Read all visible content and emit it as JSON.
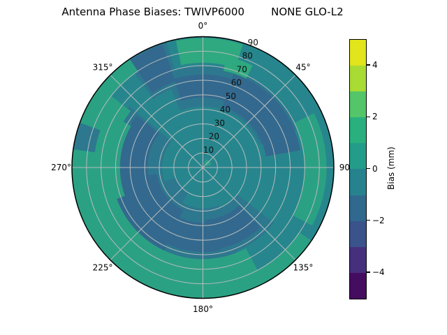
{
  "title": "Antenna Phase Biases: TWIVP6000        NONE GLO-L2",
  "chart_data": {
    "type": "polar_contour",
    "title": "Antenna Phase Biases: TWIVP6000        NONE GLO-L2",
    "antenna": "TWIVP6000",
    "radome": "NONE",
    "signal": "GLO-L2",
    "theta_ticks": [
      {
        "angle": 0,
        "label": "0°"
      },
      {
        "angle": 45,
        "label": "45°"
      },
      {
        "angle": 90,
        "label": "90"
      },
      {
        "angle": 135,
        "label": "135°"
      },
      {
        "angle": 180,
        "label": "180°"
      },
      {
        "angle": 225,
        "label": "225°"
      },
      {
        "angle": 270,
        "label": "270°"
      },
      {
        "angle": 315,
        "label": "315°"
      }
    ],
    "r_ticks": [
      10,
      20,
      30,
      40,
      50,
      60,
      70,
      80,
      90
    ],
    "r_max": 90,
    "r_label_angle": 22.5,
    "grid_color": "#b6bcbe",
    "rim_color": "#000000",
    "base_color": "#27868d",
    "base_bias_bin": "-1..0 mm",
    "regions": [
      {
        "name": "steel-band-top",
        "bias_bin": "-1..0",
        "color": "#2d788e",
        "a0": 338,
        "a1": 428,
        "r0": 42,
        "r1": 70
      },
      {
        "name": "steel-band-lower-left",
        "bias_bin": "-1..0",
        "color": "#2d788e",
        "a0": 158,
        "a1": 310,
        "r0": 28,
        "r1": 66
      },
      {
        "name": "steel-band-lower-right",
        "bias_bin": "-1..0",
        "color": "#2d788e",
        "a0": 128,
        "a1": 186,
        "r0": 30,
        "r1": 62
      },
      {
        "name": "steel-rim-upper-left",
        "bias_bin": "-1..0",
        "color": "#2d788e",
        "a0": 324,
        "a1": 344,
        "r0": 58,
        "r1": 90
      },
      {
        "name": "steel-patch-center-left",
        "bias_bin": "-1..0",
        "color": "#2d788e",
        "a0": 210,
        "a1": 250,
        "r0": 20,
        "r1": 33
      },
      {
        "name": "slate-band-top",
        "bias_bin": "-2..-1",
        "color": "#33698e",
        "a0": 342,
        "a1": 392,
        "r0": 48,
        "r1": 64
      },
      {
        "name": "slate-lens-upper-right",
        "bias_bin": "-2..-1",
        "color": "#33698e",
        "a0": 18,
        "a1": 80,
        "r0": 44,
        "r1": 68
      },
      {
        "name": "slate-band-lower-left",
        "bias_bin": "-2..-1",
        "color": "#33698e",
        "a0": 168,
        "a1": 308,
        "r0": 38,
        "r1": 58
      },
      {
        "name": "slate-band-left-outer",
        "bias_bin": "-2..-1",
        "color": "#33698e",
        "a0": 205,
        "a1": 262,
        "r0": 32,
        "r1": 64
      },
      {
        "name": "slate-blob-lower-right",
        "bias_bin": "-2..-1",
        "color": "#33698e",
        "a0": 136,
        "a1": 178,
        "r0": 36,
        "r1": 57
      },
      {
        "name": "slate-wedge-upper-left",
        "bias_bin": "-2..-1",
        "color": "#33698e",
        "a0": 326,
        "a1": 342,
        "r0": 62,
        "r1": 89
      },
      {
        "name": "green-rim-band",
        "bias_bin": "1..2",
        "color": "#2ba183",
        "a0": 124,
        "a1": 326,
        "r0": 80,
        "r1": 90
      },
      {
        "name": "green-rim-band-broad",
        "bias_bin": "1..2",
        "color": "#2ba183",
        "a0": 152,
        "a1": 308,
        "r0": 63,
        "r1": 90
      },
      {
        "name": "green-rim-left-bulge",
        "bias_bin": "1..2",
        "color": "#2ba183",
        "a0": 250,
        "a1": 300,
        "r0": 57,
        "r1": 90
      },
      {
        "name": "green-lens-right",
        "bias_bin": "1..2",
        "color": "#2ba183",
        "a0": 64,
        "a1": 118,
        "r0": 70,
        "r1": 85
      },
      {
        "name": "green-patch-top",
        "bias_bin": "1..2",
        "color": "#2fa97f",
        "a0": 348,
        "a1": 378,
        "r0": 72,
        "r1": 89
      },
      {
        "name": "green-patch-top-east",
        "bias_bin": "1..2",
        "color": "#2fa97f",
        "a0": 372,
        "a1": 386,
        "r0": 68,
        "r1": 78
      },
      {
        "name": "green-speck-center",
        "bias_bin": "1..2",
        "color": "#2ba183",
        "a0": 20,
        "a1": 70,
        "r0": 2.5,
        "r1": 6
      },
      {
        "name": "steel-notch-left-rim",
        "bias_bin": "-1..0",
        "color": "#2d788e",
        "a0": 278,
        "a1": 290,
        "r0": 75,
        "r1": 90
      }
    ],
    "colorbar": {
      "label": "Bias (mm)",
      "min": -5,
      "max": 5,
      "ticks": [
        {
          "value": 4,
          "label": "4"
        },
        {
          "value": 2,
          "label": "2"
        },
        {
          "value": 0,
          "label": "0"
        },
        {
          "value": -2,
          "label": "−2"
        },
        {
          "value": -4,
          "label": "−4"
        }
      ],
      "segment_colors_top_to_bottom": [
        "#e2e41c",
        "#a8db34",
        "#54c568",
        "#2ab07f",
        "#249c8a",
        "#26838e",
        "#31688e",
        "#3a538b",
        "#46307e",
        "#450d5f"
      ]
    }
  }
}
